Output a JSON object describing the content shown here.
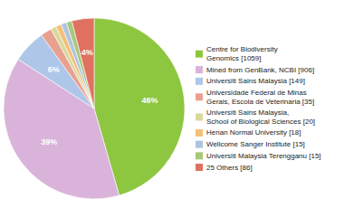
{
  "chart_data": {
    "type": "pie",
    "categories": [
      "Centre for Biodiversity\nGenomics [1059]",
      "Mined from GenBank, NCBI [906]",
      "Universiti Sains Malaysia [149]",
      "Universidade Federal de Minas\nGerais, Escola de Veterinaria [35]",
      "Universiti Sains Malaysia,\nSchool of Biological Sciences [20]",
      "Henan Normal University [18]",
      "Wellcome Sanger Institute [15]",
      "Universiti Malaysia Terengganu [15]",
      "25 Others [86]"
    ],
    "values": [
      46,
      39,
      6,
      2,
      1,
      1,
      1,
      1,
      4
    ],
    "value_labels": [
      "46%",
      "39%",
      "6%",
      null,
      null,
      null,
      null,
      null,
      "4%"
    ],
    "data_labels": true,
    "colors": [
      "#8dc63f",
      "#d9b3d9",
      "#aec6e8",
      "#e8a090",
      "#d9d99e",
      "#f4c07a",
      "#b0c4de",
      "#a8c87a",
      "#e07060"
    ],
    "legend": "right"
  }
}
